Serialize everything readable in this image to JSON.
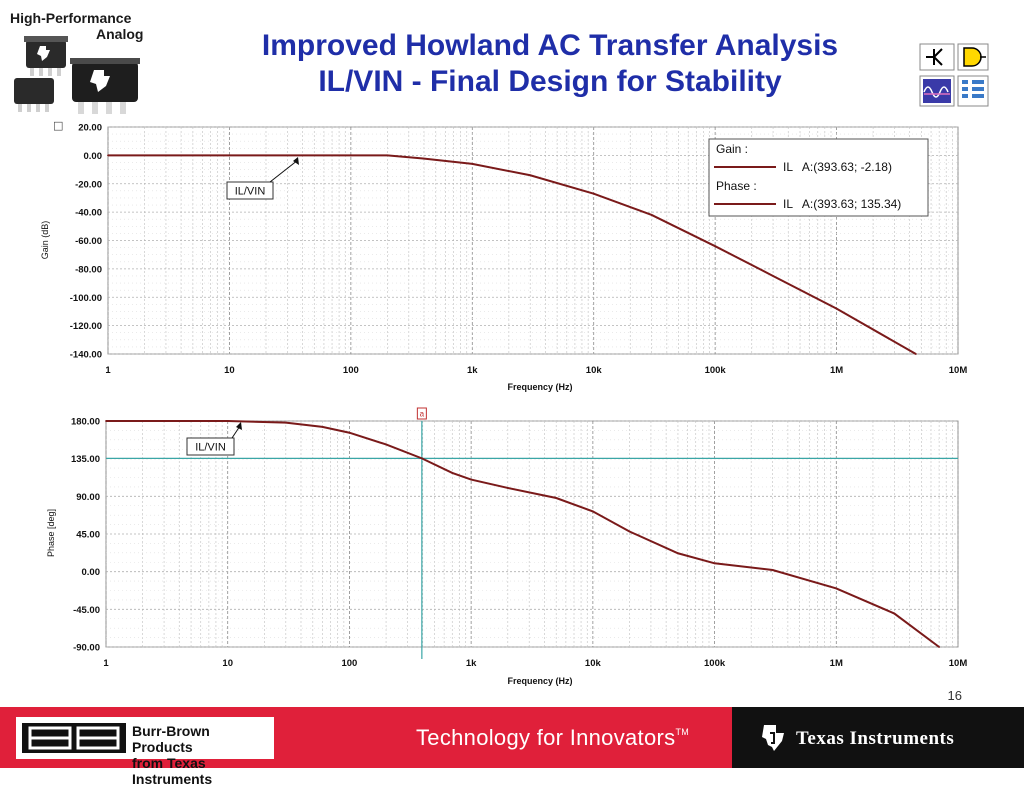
{
  "header": {
    "logo_line1": "High-Performance",
    "logo_line2": "Analog",
    "title_line1": "Improved Howland AC Transfer Analysis",
    "title_line2": "IL/VIN - Final Design for Stability",
    "tina_icon": "tina-simulator-icon"
  },
  "page_number": "16",
  "footer": {
    "bb_logo_text": "BB",
    "bb_line1": "Burr-Brown Products",
    "bb_line2": "from Texas Instruments",
    "tagline": "Technology for Innovators",
    "tagline_mark": "TM",
    "ti_name": "Texas Instruments",
    "colors": {
      "red": "#e0203a",
      "black": "#111111"
    }
  },
  "chart_data": [
    {
      "type": "line",
      "xlabel": "Frequency (Hz)",
      "ylabel": "Gain (dB)",
      "xscale": "log",
      "xlim": [
        1,
        10000000
      ],
      "ylim": [
        -140,
        20
      ],
      "x_ticks": [
        "1",
        "10",
        "100",
        "1k",
        "10k",
        "100k",
        "1M",
        "10M"
      ],
      "y_ticks": [
        "20.00",
        "0.00",
        "-20.00",
        "-40.00",
        "-60.00",
        "-80.00",
        "-100.00",
        "-120.00",
        "-140.00"
      ],
      "grid": true,
      "series_color": "#7a1a1a",
      "annotation": "IL/VIN",
      "legend": {
        "position": "top-right",
        "gain_header": "Gain :",
        "gain_entry": "IL   A:(393.63; -2.18)",
        "phase_header": "Phase :",
        "phase_entry": "IL   A:(393.63; 135.34)"
      },
      "x": [
        1,
        10,
        40,
        100,
        200,
        393.63,
        1000,
        3000,
        10000,
        30000,
        100000,
        300000,
        1000000,
        4500000
      ],
      "y": [
        0,
        0,
        0,
        0,
        0,
        -2.18,
        -6,
        -14,
        -27,
        -42,
        -64,
        -85,
        -108,
        -140
      ]
    },
    {
      "type": "line",
      "xlabel": "Frequency (Hz)",
      "ylabel": "Phase [deg]",
      "xscale": "log",
      "xlim": [
        1,
        10000000
      ],
      "ylim": [
        -90,
        180
      ],
      "x_ticks": [
        "1",
        "10",
        "100",
        "1k",
        "10k",
        "100k",
        "1M",
        "10M"
      ],
      "y_ticks": [
        "180.00",
        "135.00",
        "90.00",
        "45.00",
        "0.00",
        "-45.00",
        "-90.00"
      ],
      "grid": true,
      "series_color": "#7a1a1a",
      "cursor_color": "#3aa6a6",
      "annotation": "IL/VIN",
      "cursor_label": "a",
      "cursor_x": 393.63,
      "cursor_y": 135.34,
      "x": [
        1,
        10,
        30,
        60,
        100,
        200,
        393.63,
        700,
        1000,
        2000,
        5000,
        10000,
        20000,
        50000,
        100000,
        300000,
        1000000,
        3000000,
        7000000
      ],
      "y": [
        180,
        180,
        178,
        173,
        166,
        152,
        135.34,
        118,
        110,
        100,
        88,
        72,
        48,
        22,
        10,
        2,
        -20,
        -50,
        -90
      ]
    }
  ]
}
